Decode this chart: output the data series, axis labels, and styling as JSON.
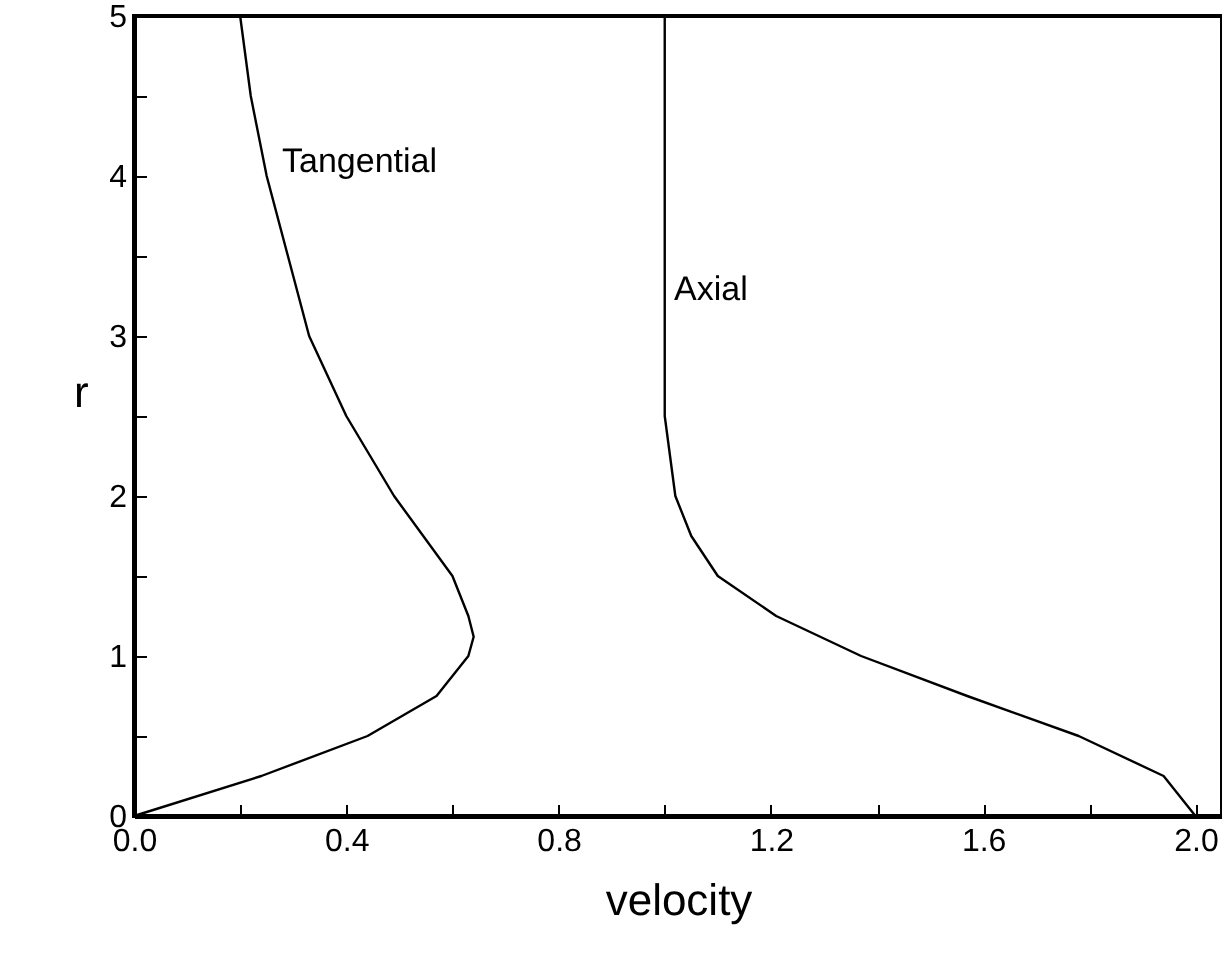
{
  "chart_data": {
    "type": "line",
    "xlabel": "velocity",
    "ylabel": "r",
    "xlim": [
      0,
      2.05
    ],
    "ylim": [
      0,
      5
    ],
    "xticks": [
      {
        "value": 0,
        "label": "0.0"
      },
      {
        "value": 0.2,
        "label": null
      },
      {
        "value": 0.4,
        "label": "0.4"
      },
      {
        "value": 0.6,
        "label": null
      },
      {
        "value": 0.8,
        "label": "0.8"
      },
      {
        "value": 1.0,
        "label": null
      },
      {
        "value": 1.2,
        "label": "1.2"
      },
      {
        "value": 1.4,
        "label": null
      },
      {
        "value": 1.6,
        "label": "1.6"
      },
      {
        "value": 1.8,
        "label": null
      },
      {
        "value": 2.0,
        "label": "2.0"
      }
    ],
    "yticks": [
      0,
      {
        "value": 0.5,
        "label": null
      },
      1,
      {
        "value": 1.5,
        "label": null
      },
      2,
      {
        "value": 2.5,
        "label": null
      },
      3,
      {
        "value": 3.5,
        "label": null
      },
      4,
      {
        "value": 4.5,
        "label": null
      },
      5
    ],
    "series": [
      {
        "color": "#000000",
        "x": [
          0,
          0.24,
          0.44,
          0.57,
          0.63,
          0.64,
          0.63,
          0.6,
          0.49,
          0.4,
          0.33,
          0.29,
          0.25,
          0.22,
          0.2
        ],
        "values": [
          0,
          0.25,
          0.5,
          0.75,
          1,
          1.12,
          1.25,
          1.5,
          2,
          2.5,
          3,
          3.5,
          4,
          4.5,
          5
        ]
      },
      {
        "color": "#000000",
        "x": [
          2,
          1.94,
          1.78,
          1.57,
          1.37,
          1.21,
          1.1,
          1.05,
          1.02,
          1.0,
          1.0,
          1.0
        ],
        "values": [
          0,
          0.25,
          0.5,
          0.75,
          1,
          1.25,
          1.5,
          1.75,
          2,
          2.5,
          3,
          5
        ]
      }
    ],
    "annotations": [
      "Tangential",
      "Axial"
    ],
    "marker": "none",
    "line_style": "solid",
    "grid": false
  }
}
